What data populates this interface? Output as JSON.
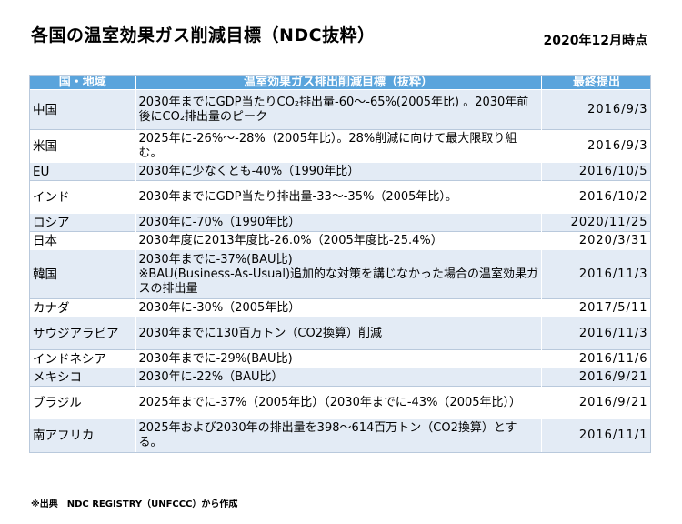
{
  "title": "各国の温室効果ガス削減目標（NDC抜粋）",
  "as_of": "2020年12月時点",
  "table": {
    "headers": [
      "国・地域",
      "温室効果ガス排出削減目標（抜粋）",
      "最終提出"
    ],
    "rows": [
      {
        "country": "中国",
        "goal": "2030年までにGDP当たりCO₂排出量-60〜-65%(2005年比) 。2030年前後にCO₂排出量のピーク",
        "date": "2016/9/3"
      },
      {
        "country": "米国",
        "goal": "2025年に-26%〜-28%（2005年比）。28%削減に向けて最大限取り組む。",
        "date": "2016/9/3"
      },
      {
        "country": "EU",
        "goal": "2030年に少なくとも-40%（1990年比）",
        "date": "2016/10/5"
      },
      {
        "country": "インド",
        "goal": "2030年までにGDP当たり排出量-33〜-35%（2005年比）。",
        "date": "2016/10/2"
      },
      {
        "country": "ロシア",
        "goal": "2030年に-70%（1990年比）",
        "date": "2020/11/25"
      },
      {
        "country": "日本",
        "goal": "2030年度に2013年度比-26.0%（2005年度比-25.4%）",
        "date": "2020/3/31"
      },
      {
        "country": "韓国",
        "goal": "2030年までに-37%(BAU比)\n※BAU(Business-As-Usual)追加的な対策を講じなかった場合の温室効果ガスの排出量",
        "date": "2016/11/3"
      },
      {
        "country": "カナダ",
        "goal": "2030年に-30%（2005年比）",
        "date": "2017/5/11"
      },
      {
        "country": "サウジアラビア",
        "goal": "2030年までに130百万トン（CO2換算）削減",
        "date": "2016/11/3"
      },
      {
        "country": "インドネシア",
        "goal": "2030年までに-29%(BAU比)",
        "date": "2016/11/6"
      },
      {
        "country": "メキシコ",
        "goal": "2030年に-22%（BAU比）",
        "date": "2016/9/21"
      },
      {
        "country": "ブラジル",
        "goal": "2025年までに-37%（2005年比）（2030年までに-43%（2005年比））",
        "date": "2016/9/21"
      },
      {
        "country": "南アフリカ",
        "goal": "2025年および2030年の排出量を398〜614百万トン（CO2換算）とする。",
        "date": "2016/11/1"
      }
    ]
  },
  "source": "※出典　NDC REGISTRY（UNFCCC）から作成"
}
